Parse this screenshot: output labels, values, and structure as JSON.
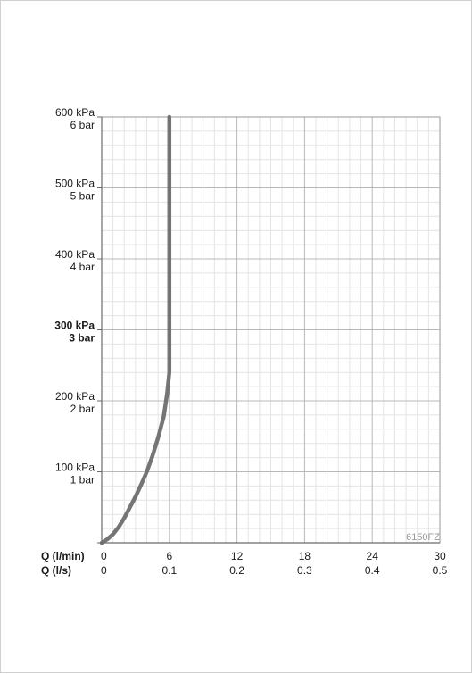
{
  "chart_data": {
    "type": "line",
    "title": "",
    "model_label": "6150FZ",
    "xlabel_primary": "Q (l/min)",
    "xlabel_secondary": "Q (l/s)",
    "xlim": [
      0,
      30
    ],
    "ylim": [
      0,
      600
    ],
    "grid": true,
    "x_ticks": [
      {
        "lmin": "0",
        "ls": "0"
      },
      {
        "lmin": "6",
        "ls": "0.1"
      },
      {
        "lmin": "12",
        "ls": "0.2"
      },
      {
        "lmin": "18",
        "ls": "0.3"
      },
      {
        "lmin": "24",
        "ls": "0.4"
      },
      {
        "lmin": "30",
        "ls": "0.5"
      }
    ],
    "y_ticks": [
      {
        "kpa": "600 kPa",
        "bar": "6 bar",
        "bold": false
      },
      {
        "kpa": "500 kPa",
        "bar": "5 bar",
        "bold": false
      },
      {
        "kpa": "400 kPa",
        "bar": "4 bar",
        "bold": false
      },
      {
        "kpa": "300 kPa",
        "bar": "3 bar",
        "bold": true
      },
      {
        "kpa": "200 kPa",
        "bar": "2 bar",
        "bold": false
      },
      {
        "kpa": "100 kPa",
        "bar": "1 bar",
        "bold": false
      }
    ],
    "series": [
      {
        "color": "#6e6e6e",
        "x": [
          0,
          0.5,
          1.0,
          1.5,
          2.0,
          2.5,
          3.0,
          3.5,
          4.0,
          4.5,
          5.0,
          5.5,
          5.8,
          6.0,
          6.0,
          6.0
        ],
        "y": [
          0,
          5,
          12,
          22,
          35,
          50,
          65,
          82,
          100,
          122,
          148,
          178,
          210,
          240,
          400,
          600
        ]
      }
    ]
  }
}
